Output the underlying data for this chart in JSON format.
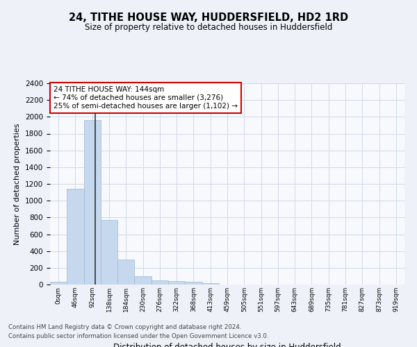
{
  "title": "24, TITHE HOUSE WAY, HUDDERSFIELD, HD2 1RD",
  "subtitle": "Size of property relative to detached houses in Huddersfield",
  "xlabel": "Distribution of detached houses by size in Huddersfield",
  "ylabel": "Number of detached properties",
  "bar_values": [
    35,
    1140,
    1960,
    770,
    300,
    100,
    47,
    40,
    35,
    20,
    0,
    0,
    0,
    0,
    0,
    0,
    0,
    0,
    0,
    0,
    0
  ],
  "bar_labels": [
    "0sqm",
    "46sqm",
    "92sqm",
    "138sqm",
    "184sqm",
    "230sqm",
    "276sqm",
    "322sqm",
    "368sqm",
    "413sqm",
    "459sqm",
    "505sqm",
    "551sqm",
    "597sqm",
    "643sqm",
    "689sqm",
    "735sqm",
    "781sqm",
    "827sqm",
    "873sqm",
    "919sqm"
  ],
  "bar_color": "#c5d8ed",
  "bar_edge_color": "#a0b8d0",
  "property_sqm": 144,
  "annotation_text": "24 TITHE HOUSE WAY: 144sqm\n← 74% of detached houses are smaller (3,276)\n25% of semi-detached houses are larger (1,102) →",
  "annotation_box_color": "#ffffff",
  "annotation_box_edge": "#cc0000",
  "vline_x": 2.17,
  "ylim": [
    0,
    2400
  ],
  "yticks": [
    0,
    200,
    400,
    600,
    800,
    1000,
    1200,
    1400,
    1600,
    1800,
    2000,
    2200,
    2400
  ],
  "footer_line1": "Contains HM Land Registry data © Crown copyright and database right 2024.",
  "footer_line2": "Contains public sector information licensed under the Open Government Licence v3.0.",
  "bg_color": "#eef2f8",
  "plot_bg_color": "#f7f9fc",
  "grid_color": "#d0d8e8"
}
